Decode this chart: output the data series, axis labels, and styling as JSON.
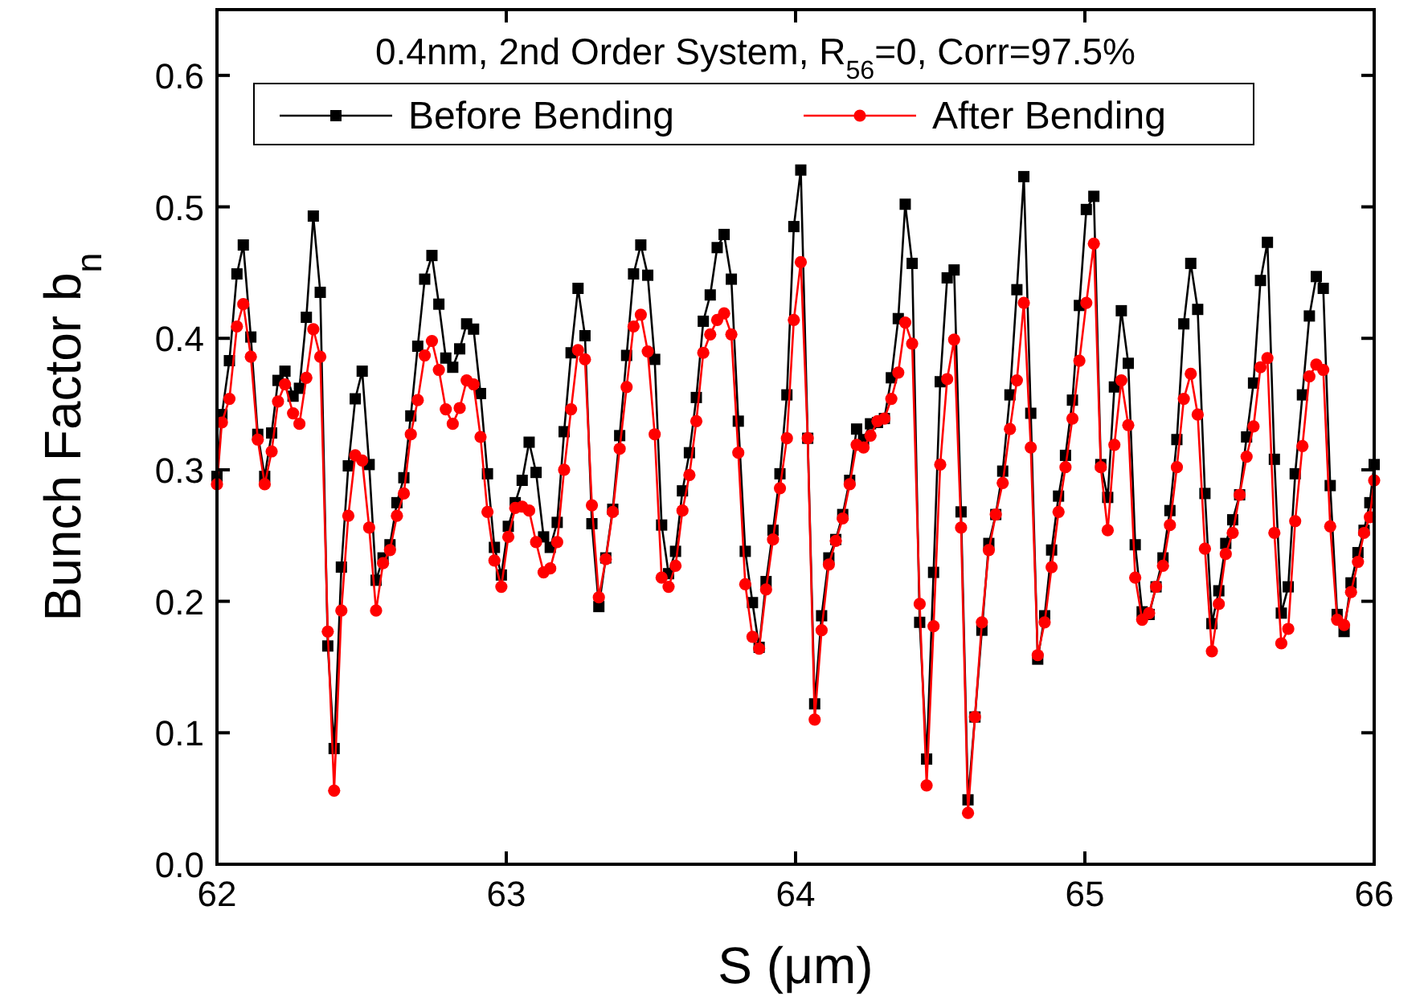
{
  "chart_data": {
    "type": "line",
    "title": "0.4nm, 2nd Order System, R$_{56}$=0, Corr=97.5%",
    "xlabel": "S (μm)",
    "ylabel": "Bunch Factor b$_{n}$",
    "xlim": [
      62,
      66
    ],
    "xticks": [
      62,
      63,
      64,
      65,
      66
    ],
    "ylim": [
      0,
      0.65
    ],
    "yticks": [
      {
        "value": 0,
        "label": "0.0"
      },
      0.1,
      0.2,
      0.3,
      0.4,
      0.5,
      0.6
    ],
    "grid": false,
    "legend": "top",
    "line_style": "solid",
    "series": [
      {
        "name": "Before Bending",
        "color": "#000000",
        "marker": "square",
        "x": [
          62.0,
          62.017,
          62.043,
          62.069,
          62.091,
          62.117,
          62.141,
          62.165,
          62.189,
          62.211,
          62.235,
          62.263,
          62.285,
          62.309,
          62.333,
          62.357,
          62.383,
          62.405,
          62.43,
          62.454,
          62.478,
          62.502,
          62.526,
          62.55,
          62.574,
          62.598,
          62.622,
          62.646,
          62.67,
          62.694,
          62.718,
          62.743,
          62.767,
          62.791,
          62.815,
          62.839,
          62.863,
          62.887,
          62.911,
          62.935,
          62.959,
          62.983,
          63.007,
          63.031,
          63.055,
          63.079,
          63.103,
          63.129,
          63.152,
          63.176,
          63.2,
          63.224,
          63.248,
          63.272,
          63.296,
          63.32,
          63.344,
          63.368,
          63.392,
          63.416,
          63.44,
          63.465,
          63.489,
          63.513,
          63.537,
          63.561,
          63.585,
          63.609,
          63.633,
          63.657,
          63.681,
          63.705,
          63.729,
          63.753,
          63.778,
          63.802,
          63.826,
          63.851,
          63.874,
          63.898,
          63.922,
          63.946,
          63.97,
          63.994,
          64.018,
          64.042,
          64.066,
          64.09,
          64.115,
          64.139,
          64.163,
          64.187,
          64.211,
          64.235,
          64.259,
          64.283,
          64.307,
          64.331,
          64.355,
          64.379,
          64.403,
          64.429,
          64.453,
          64.477,
          64.5,
          64.524,
          64.548,
          64.572,
          64.596,
          64.62,
          64.644,
          64.668,
          64.692,
          64.716,
          64.741,
          64.765,
          64.789,
          64.813,
          64.837,
          64.861,
          64.885,
          64.909,
          64.933,
          64.957,
          64.981,
          65.005,
          65.031,
          65.055,
          65.079,
          65.102,
          65.126,
          65.15,
          65.174,
          65.198,
          65.222,
          65.246,
          65.27,
          65.294,
          65.318,
          65.342,
          65.366,
          65.39,
          65.415,
          65.439,
          65.463,
          65.487,
          65.511,
          65.535,
          65.559,
          65.583,
          65.607,
          65.631,
          65.655,
          65.679,
          65.703,
          65.727,
          65.752,
          65.776,
          65.8,
          65.824,
          65.848,
          65.872,
          65.896,
          65.92,
          65.944,
          65.965,
          65.985,
          66.0
        ],
        "values": [
          0.295,
          0.342,
          0.383,
          0.449,
          0.471,
          0.401,
          0.327,
          0.295,
          0.328,
          0.368,
          0.375,
          0.356,
          0.362,
          0.416,
          0.493,
          0.435,
          0.166,
          0.088,
          0.226,
          0.303,
          0.354,
          0.375,
          0.304,
          0.216,
          0.233,
          0.243,
          0.275,
          0.294,
          0.341,
          0.394,
          0.445,
          0.463,
          0.426,
          0.385,
          0.378,
          0.392,
          0.411,
          0.407,
          0.358,
          0.297,
          0.241,
          0.22,
          0.257,
          0.275,
          0.292,
          0.321,
          0.298,
          0.249,
          0.241,
          0.26,
          0.329,
          0.389,
          0.438,
          0.402,
          0.259,
          0.196,
          0.233,
          0.27,
          0.326,
          0.387,
          0.449,
          0.471,
          0.448,
          0.384,
          0.258,
          0.221,
          0.238,
          0.284,
          0.313,
          0.355,
          0.413,
          0.433,
          0.469,
          0.479,
          0.445,
          0.337,
          0.238,
          0.199,
          0.165,
          0.215,
          0.254,
          0.297,
          0.357,
          0.485,
          0.528,
          0.324,
          0.122,
          0.189,
          0.233,
          0.247,
          0.266,
          0.292,
          0.331,
          0.323,
          0.335,
          0.336,
          0.339,
          0.37,
          0.415,
          0.502,
          0.457,
          0.184,
          0.08,
          0.222,
          0.367,
          0.446,
          0.452,
          0.268,
          0.049,
          0.112,
          0.178,
          0.244,
          0.266,
          0.299,
          0.357,
          0.437,
          0.523,
          0.343,
          0.156,
          0.189,
          0.239,
          0.28,
          0.311,
          0.353,
          0.425,
          0.498,
          0.508,
          0.304,
          0.279,
          0.363,
          0.421,
          0.381,
          0.243,
          0.192,
          0.19,
          0.211,
          0.233,
          0.269,
          0.323,
          0.411,
          0.457,
          0.422,
          0.282,
          0.183,
          0.208,
          0.244,
          0.262,
          0.281,
          0.325,
          0.366,
          0.444,
          0.473,
          0.308,
          0.191,
          0.211,
          0.297,
          0.357,
          0.417,
          0.447,
          0.438,
          0.288,
          0.19,
          0.177,
          0.214,
          0.237,
          0.254,
          0.275,
          0.304
        ]
      },
      {
        "name": "After Bending",
        "color": "#ff0000",
        "marker": "circle",
        "x": [
          62.0,
          62.017,
          62.043,
          62.069,
          62.091,
          62.117,
          62.141,
          62.165,
          62.189,
          62.211,
          62.235,
          62.263,
          62.285,
          62.309,
          62.333,
          62.357,
          62.383,
          62.405,
          62.43,
          62.454,
          62.478,
          62.502,
          62.526,
          62.55,
          62.574,
          62.598,
          62.622,
          62.646,
          62.67,
          62.694,
          62.718,
          62.743,
          62.767,
          62.791,
          62.815,
          62.839,
          62.863,
          62.887,
          62.911,
          62.935,
          62.959,
          62.983,
          63.007,
          63.031,
          63.055,
          63.079,
          63.103,
          63.129,
          63.152,
          63.176,
          63.2,
          63.224,
          63.248,
          63.272,
          63.296,
          63.32,
          63.344,
          63.368,
          63.392,
          63.416,
          63.44,
          63.465,
          63.489,
          63.513,
          63.537,
          63.561,
          63.585,
          63.609,
          63.633,
          63.657,
          63.681,
          63.705,
          63.729,
          63.753,
          63.778,
          63.802,
          63.826,
          63.851,
          63.874,
          63.898,
          63.922,
          63.946,
          63.97,
          63.994,
          64.018,
          64.042,
          64.066,
          64.09,
          64.115,
          64.139,
          64.163,
          64.187,
          64.211,
          64.235,
          64.259,
          64.283,
          64.307,
          64.331,
          64.355,
          64.379,
          64.403,
          64.429,
          64.453,
          64.477,
          64.5,
          64.524,
          64.548,
          64.572,
          64.596,
          64.62,
          64.644,
          64.668,
          64.692,
          64.716,
          64.741,
          64.765,
          64.789,
          64.813,
          64.837,
          64.861,
          64.885,
          64.909,
          64.933,
          64.957,
          64.981,
          65.005,
          65.031,
          65.055,
          65.079,
          65.102,
          65.126,
          65.15,
          65.174,
          65.198,
          65.222,
          65.246,
          65.27,
          65.294,
          65.318,
          65.342,
          65.366,
          65.39,
          65.415,
          65.439,
          65.463,
          65.487,
          65.511,
          65.535,
          65.559,
          65.583,
          65.607,
          65.631,
          65.655,
          65.679,
          65.703,
          65.727,
          65.752,
          65.776,
          65.8,
          65.824,
          65.848,
          65.872,
          65.896,
          65.92,
          65.944,
          65.965,
          65.985,
          66.0
        ],
        "values": [
          0.289,
          0.336,
          0.354,
          0.409,
          0.426,
          0.386,
          0.323,
          0.289,
          0.314,
          0.352,
          0.365,
          0.343,
          0.335,
          0.37,
          0.407,
          0.386,
          0.177,
          0.056,
          0.193,
          0.265,
          0.311,
          0.307,
          0.256,
          0.193,
          0.229,
          0.239,
          0.265,
          0.282,
          0.327,
          0.353,
          0.387,
          0.398,
          0.376,
          0.346,
          0.335,
          0.347,
          0.368,
          0.365,
          0.325,
          0.268,
          0.231,
          0.211,
          0.249,
          0.271,
          0.272,
          0.269,
          0.245,
          0.222,
          0.225,
          0.245,
          0.3,
          0.346,
          0.391,
          0.384,
          0.273,
          0.203,
          0.232,
          0.268,
          0.316,
          0.363,
          0.409,
          0.418,
          0.39,
          0.327,
          0.218,
          0.211,
          0.227,
          0.269,
          0.296,
          0.337,
          0.389,
          0.403,
          0.414,
          0.419,
          0.403,
          0.313,
          0.213,
          0.173,
          0.164,
          0.209,
          0.247,
          0.286,
          0.324,
          0.414,
          0.458,
          0.324,
          0.11,
          0.178,
          0.228,
          0.246,
          0.263,
          0.289,
          0.319,
          0.317,
          0.326,
          0.337,
          0.339,
          0.354,
          0.374,
          0.412,
          0.396,
          0.198,
          0.06,
          0.181,
          0.304,
          0.369,
          0.399,
          0.256,
          0.039,
          0.112,
          0.184,
          0.239,
          0.266,
          0.29,
          0.331,
          0.368,
          0.427,
          0.317,
          0.159,
          0.184,
          0.226,
          0.268,
          0.302,
          0.339,
          0.383,
          0.427,
          0.472,
          0.302,
          0.254,
          0.319,
          0.368,
          0.334,
          0.218,
          0.186,
          0.191,
          0.211,
          0.227,
          0.258,
          0.302,
          0.354,
          0.373,
          0.342,
          0.24,
          0.162,
          0.198,
          0.236,
          0.252,
          0.281,
          0.31,
          0.333,
          0.378,
          0.385,
          0.252,
          0.168,
          0.179,
          0.261,
          0.318,
          0.371,
          0.38,
          0.376,
          0.257,
          0.186,
          0.182,
          0.207,
          0.23,
          0.252,
          0.264,
          0.292
        ]
      }
    ]
  }
}
